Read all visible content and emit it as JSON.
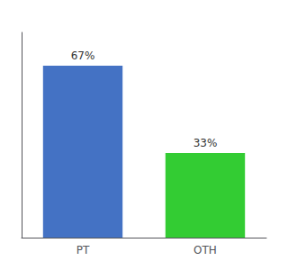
{
  "chart_data": {
    "type": "bar",
    "categories": [
      "PT",
      "OTH"
    ],
    "values": [
      67,
      33
    ],
    "value_labels": [
      "67%",
      "33%"
    ],
    "data_labels": true,
    "colors": [
      "#4472c4",
      "#33cc33"
    ],
    "ylim": [
      0,
      80
    ],
    "grid": false,
    "tick_labels": "x"
  }
}
